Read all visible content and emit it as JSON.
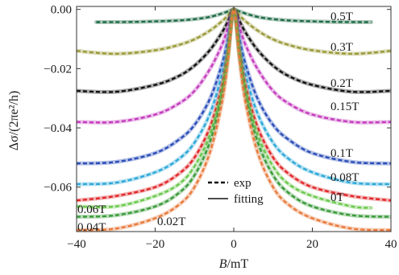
{
  "chart_data": {
    "type": "line",
    "xlabel": "B/mT",
    "xlabel_var": "B",
    "xlabel_unit": "/mT",
    "ylabel": "Δσ/(2πe²/h)",
    "xlim": [
      -40,
      40
    ],
    "ylim": [
      -0.075,
      0.001
    ],
    "xticks": [
      -40,
      -20,
      0,
      20,
      40
    ],
    "xtick_labels": [
      "−40",
      "−20",
      "0",
      "20",
      "40"
    ],
    "yticks": [
      0.0,
      -0.02,
      -0.04,
      -0.06
    ],
    "ytick_labels": [
      "0.00",
      "−0.02",
      "−0.04",
      "−0.06"
    ],
    "legend": {
      "position": "lower-center",
      "entries": [
        {
          "label": "exp",
          "style": "dashed"
        },
        {
          "label": "fitting",
          "style": "solid"
        }
      ]
    },
    "series": [
      {
        "name": "0.5T",
        "color": "#1f6b45",
        "x": [
          -35,
          -25,
          -15,
          -10,
          -6,
          -3,
          -1.5,
          0,
          1.5,
          3,
          6,
          10,
          15,
          25,
          35
        ],
        "y": [
          -0.0043,
          -0.0042,
          -0.0038,
          -0.0033,
          -0.0025,
          -0.0014,
          -0.0007,
          0.0,
          -0.0007,
          -0.0014,
          -0.0025,
          -0.0033,
          -0.0038,
          -0.0042,
          -0.0043
        ]
      },
      {
        "name": "0.3T",
        "color": "#9a9a3a",
        "x": [
          -40,
          -30,
          -20,
          -14,
          -10,
          -6,
          -3,
          -1.5,
          0,
          1.5,
          3,
          6,
          10,
          14,
          20,
          30,
          40
        ],
        "y": [
          -0.014,
          -0.015,
          -0.0138,
          -0.012,
          -0.0101,
          -0.0071,
          -0.004,
          -0.0021,
          0.0,
          -0.0021,
          -0.004,
          -0.0071,
          -0.0101,
          -0.012,
          -0.0138,
          -0.015,
          -0.014
        ]
      },
      {
        "name": "0.2T",
        "color": "#111111",
        "x": [
          -40,
          -30,
          -20,
          -14,
          -10,
          -6,
          -3,
          -1.5,
          0,
          1.5,
          3,
          6,
          10,
          14,
          20,
          30,
          40
        ],
        "y": [
          -0.0275,
          -0.0278,
          -0.0255,
          -0.0225,
          -0.019,
          -0.0136,
          -0.0078,
          -0.004,
          0.0,
          -0.004,
          -0.0078,
          -0.0136,
          -0.019,
          -0.0225,
          -0.0255,
          -0.0278,
          -0.0275
        ]
      },
      {
        "name": "0.15T",
        "color": "#c43cbd",
        "x": [
          -40,
          -30,
          -20,
          -14,
          -10,
          -6,
          -3,
          -1.5,
          0,
          1.5,
          3,
          6,
          10,
          14,
          20,
          30,
          40
        ],
        "y": [
          -0.038,
          -0.038,
          -0.0355,
          -0.0318,
          -0.0275,
          -0.02,
          -0.012,
          -0.0062,
          0.0,
          -0.0062,
          -0.012,
          -0.02,
          -0.0275,
          -0.0318,
          -0.0355,
          -0.038,
          -0.038
        ]
      },
      {
        "name": "0.1T",
        "color": "#2a4db8",
        "x": [
          -40,
          -30,
          -20,
          -14,
          -10,
          -6,
          -3,
          -1.5,
          0,
          1.5,
          3,
          6,
          10,
          14,
          20,
          30,
          40
        ],
        "y": [
          -0.052,
          -0.0515,
          -0.0485,
          -0.044,
          -0.039,
          -0.03,
          -0.0185,
          -0.01,
          0.0,
          -0.01,
          -0.0185,
          -0.03,
          -0.039,
          -0.044,
          -0.0485,
          -0.0515,
          -0.052
        ]
      },
      {
        "name": "0.08T",
        "color": "#2ea8d8",
        "x": [
          -40,
          -30,
          -20,
          -14,
          -10,
          -6,
          -3,
          -1.5,
          0,
          1.5,
          3,
          6,
          10,
          14,
          20,
          30,
          40
        ],
        "y": [
          -0.059,
          -0.0585,
          -0.055,
          -0.0505,
          -0.045,
          -0.035,
          -0.022,
          -0.012,
          0.0,
          -0.012,
          -0.022,
          -0.035,
          -0.045,
          -0.0505,
          -0.055,
          -0.0585,
          -0.059
        ]
      },
      {
        "name": "0T",
        "color": "#e0282a",
        "x": [
          -40,
          -30,
          -20,
          -14,
          -10,
          -6,
          -3,
          -1.5,
          0,
          1.5,
          3,
          6,
          10,
          14,
          20,
          30,
          40
        ],
        "y": [
          -0.0645,
          -0.063,
          -0.06,
          -0.0555,
          -0.05,
          -0.0395,
          -0.0255,
          -0.014,
          0.0,
          -0.014,
          -0.0255,
          -0.0395,
          -0.05,
          -0.0555,
          -0.06,
          -0.063,
          -0.0645
        ]
      },
      {
        "name": "0.06T",
        "color": "#6cc84e",
        "x": [
          -40,
          -30,
          -20,
          -14,
          -10,
          -6,
          -3,
          -1.5,
          0,
          1.5,
          3,
          6,
          10,
          14,
          20,
          30,
          35
        ],
        "y": [
          -0.0665,
          -0.0665,
          -0.063,
          -0.059,
          -0.053,
          -0.042,
          -0.0272,
          -0.015,
          0.0,
          -0.015,
          -0.0272,
          -0.042,
          -0.053,
          -0.059,
          -0.063,
          -0.0665,
          -0.067
        ]
      },
      {
        "name": "0.04T",
        "color": "#3a9a3a",
        "x": [
          -40,
          -30,
          -20,
          -14,
          -10,
          -6,
          -3,
          -1.5,
          0,
          1.5,
          3,
          6,
          10,
          14,
          20,
          30,
          40
        ],
        "y": [
          -0.07,
          -0.0695,
          -0.0665,
          -0.062,
          -0.056,
          -0.0445,
          -0.029,
          -0.016,
          0.0,
          -0.016,
          -0.029,
          -0.0445,
          -0.056,
          -0.062,
          -0.0665,
          -0.0695,
          -0.07
        ]
      },
      {
        "name": "0.02T",
        "color": "#e87a3c",
        "x": [
          -40,
          -30,
          -20,
          -14,
          -10,
          -6,
          -3,
          -1.5,
          0,
          1.5,
          3,
          6,
          10,
          14,
          20,
          30,
          40
        ],
        "y": [
          -0.0745,
          -0.074,
          -0.0705,
          -0.066,
          -0.06,
          -0.048,
          -0.0315,
          -0.0175,
          0.0,
          -0.0175,
          -0.0315,
          -0.048,
          -0.06,
          -0.066,
          -0.0705,
          -0.074,
          -0.0745
        ]
      }
    ]
  }
}
